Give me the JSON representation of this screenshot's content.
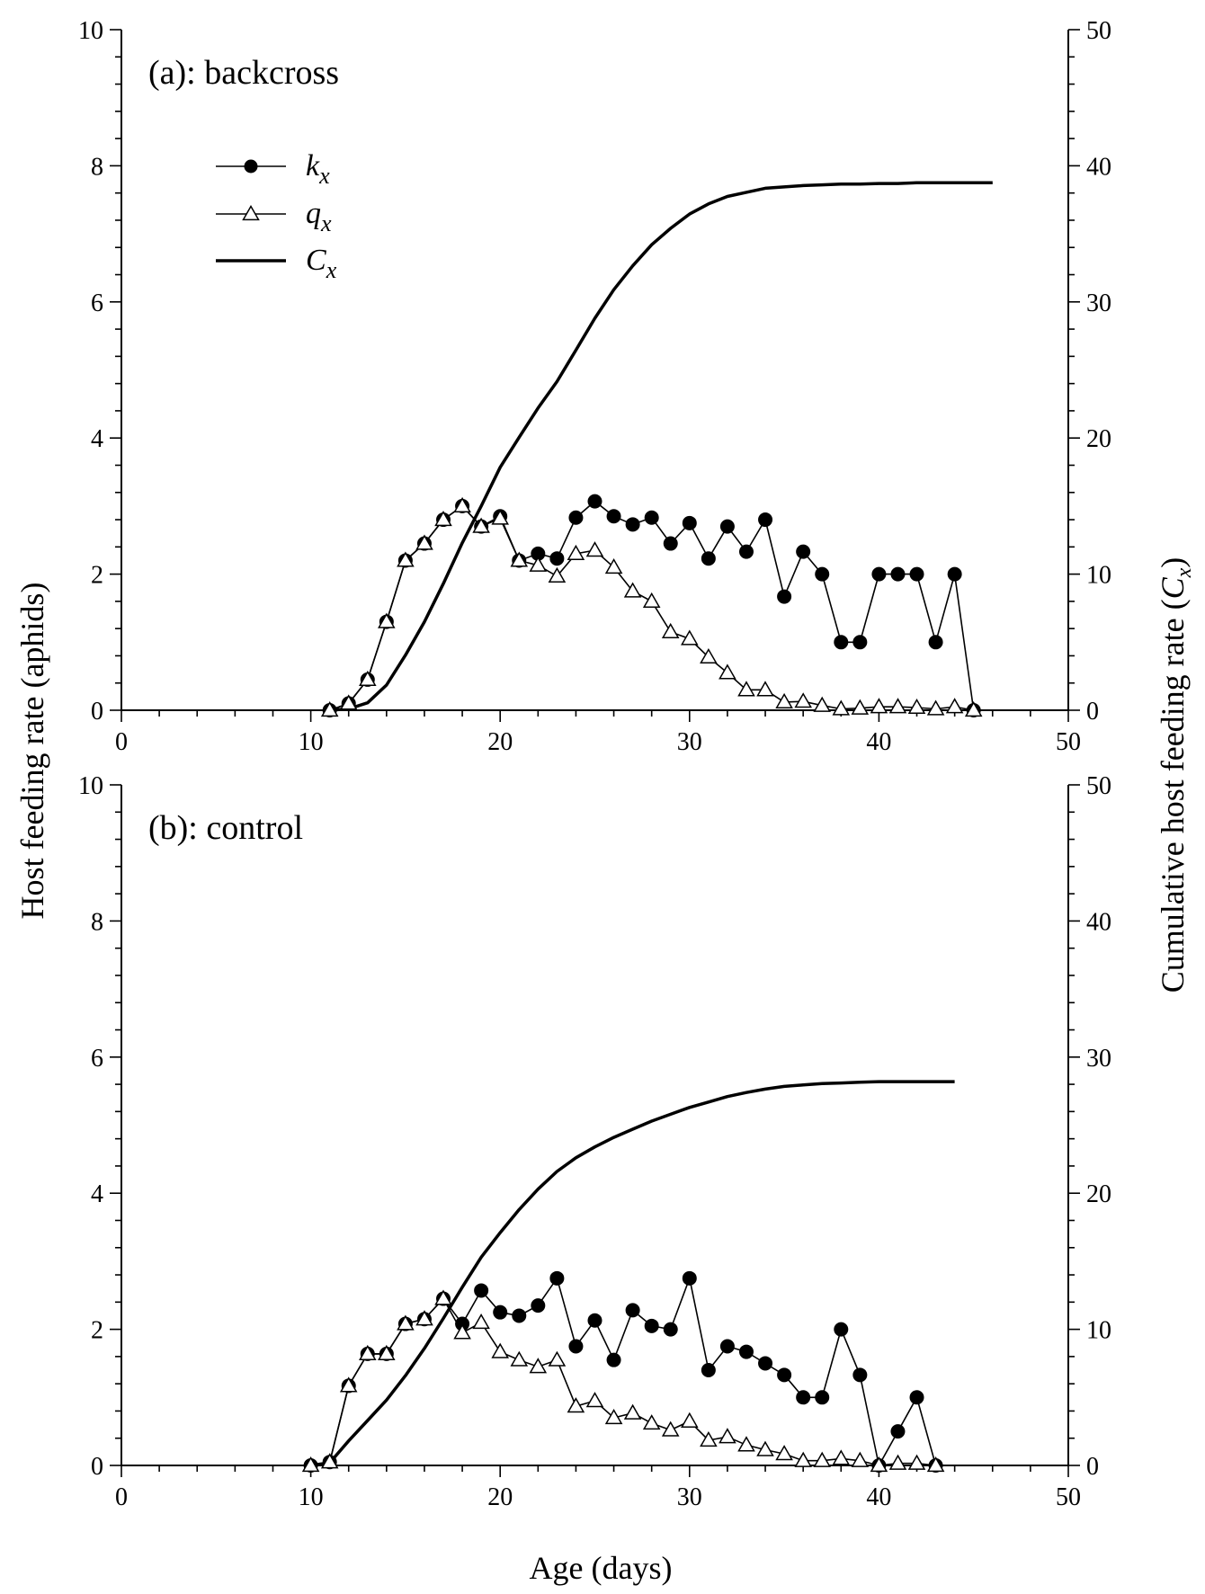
{
  "chart_data": {
    "type": "line",
    "shared": {
      "ylabel_left": "Host feeding rate (aphids)",
      "ylabel_right": "Cumulative host feeding rate (",
      "ylabel_right_symbol": "C",
      "ylabel_right_sub": "x",
      "ylabel_right_close": ")",
      "xlabel": "Age (days)",
      "xlim": [
        0,
        50
      ],
      "ylim_left": [
        0,
        10
      ],
      "ylim_right": [
        0,
        50
      ],
      "x_ticks": [
        0,
        10,
        20,
        30,
        40,
        50
      ],
      "y_left_ticks": [
        0,
        2,
        4,
        6,
        8,
        10
      ],
      "y_right_ticks": [
        0,
        10,
        20,
        30,
        40,
        50
      ],
      "x_tick_labels": [
        "0",
        "10",
        "20",
        "30",
        "40",
        "50"
      ],
      "y_left_tick_labels": [
        "0",
        "2",
        "4",
        "6",
        "8",
        "10"
      ],
      "y_right_tick_labels": [
        "0",
        "10",
        "20",
        "30",
        "40",
        "50"
      ],
      "legend": [
        {
          "name": "k",
          "sub": "x",
          "marker": "filled-circle"
        },
        {
          "name": "q",
          "sub": "x",
          "marker": "open-triangle"
        },
        {
          "name": "C",
          "sub": "x",
          "marker": "thick-line"
        }
      ]
    },
    "panels": [
      {
        "title": "(a): backcross",
        "series": [
          {
            "name": "kx",
            "axis": "left",
            "x": [
              11,
              12,
              13,
              14,
              15,
              16,
              17,
              18,
              19,
              20,
              21,
              22,
              23,
              24,
              25,
              26,
              27,
              28,
              29,
              30,
              31,
              32,
              33,
              34,
              35,
              36,
              37,
              38,
              39,
              40,
              41,
              42,
              43,
              44,
              45
            ],
            "y": [
              0,
              0.1,
              0.45,
              1.3,
              2.2,
              2.45,
              2.8,
              3.0,
              2.7,
              2.85,
              2.2,
              2.3,
              2.23,
              2.83,
              3.07,
              2.85,
              2.73,
              2.83,
              2.45,
              2.75,
              2.23,
              2.7,
              2.33,
              2.8,
              1.67,
              2.33,
              2.0,
              1.0,
              1.0,
              2.0,
              2.0,
              2.0,
              1.0,
              2.0,
              0
            ]
          },
          {
            "name": "qx",
            "axis": "left",
            "x": [
              11,
              12,
              13,
              14,
              15,
              16,
              17,
              18,
              19,
              20,
              21,
              22,
              23,
              24,
              25,
              26,
              27,
              28,
              29,
              30,
              31,
              32,
              33,
              34,
              35,
              36,
              37,
              38,
              39,
              40,
              41,
              42,
              43,
              44,
              45
            ],
            "y": [
              0,
              0.1,
              0.45,
              1.3,
              2.2,
              2.45,
              2.8,
              3.0,
              2.7,
              2.82,
              2.2,
              2.13,
              1.97,
              2.3,
              2.35,
              2.1,
              1.75,
              1.6,
              1.15,
              1.05,
              0.78,
              0.55,
              0.3,
              0.3,
              0.12,
              0.13,
              0.07,
              0.02,
              0.03,
              0.05,
              0.05,
              0.04,
              0.02,
              0.05,
              0
            ]
          },
          {
            "name": "Cx",
            "axis": "right",
            "x": [
              11,
              12,
              13,
              14,
              15,
              16,
              17,
              18,
              19,
              20,
              21,
              22,
              23,
              24,
              25,
              26,
              27,
              28,
              29,
              30,
              31,
              32,
              33,
              34,
              35,
              36,
              37,
              38,
              39,
              40,
              41,
              42,
              43,
              44,
              45,
              46
            ],
            "y": [
              0,
              0.1,
              0.55,
              1.85,
              4.05,
              6.5,
              9.3,
              12.3,
              15.0,
              17.85,
              20.05,
              22.2,
              24.15,
              26.45,
              28.8,
              30.9,
              32.65,
              34.2,
              35.4,
              36.45,
              37.2,
              37.75,
              38.05,
              38.35,
              38.45,
              38.55,
              38.6,
              38.65,
              38.65,
              38.7,
              38.7,
              38.75,
              38.75,
              38.75,
              38.75,
              38.75
            ]
          }
        ]
      },
      {
        "title": "(b): control",
        "series": [
          {
            "name": "kx",
            "axis": "left",
            "x": [
              10,
              11,
              12,
              13,
              14,
              15,
              16,
              17,
              18,
              19,
              20,
              21,
              22,
              23,
              24,
              25,
              26,
              27,
              28,
              29,
              30,
              31,
              32,
              33,
              34,
              35,
              36,
              37,
              38,
              39,
              40,
              41,
              42,
              43
            ],
            "y": [
              0,
              0.05,
              1.17,
              1.64,
              1.64,
              2.08,
              2.15,
              2.45,
              2.08,
              2.57,
              2.25,
              2.2,
              2.35,
              2.75,
              1.75,
              2.13,
              1.55,
              2.28,
              2.05,
              2.0,
              2.75,
              1.4,
              1.75,
              1.67,
              1.5,
              1.33,
              1.0,
              1.0,
              2.0,
              1.33,
              0,
              0.5,
              1.0,
              0
            ]
          },
          {
            "name": "qx",
            "axis": "left",
            "x": [
              10,
              11,
              12,
              13,
              14,
              15,
              16,
              17,
              18,
              19,
              20,
              21,
              22,
              23,
              24,
              25,
              26,
              27,
              28,
              29,
              30,
              31,
              32,
              33,
              34,
              35,
              36,
              37,
              38,
              39,
              40,
              41,
              42,
              43
            ],
            "y": [
              0,
              0.05,
              1.17,
              1.64,
              1.64,
              2.08,
              2.15,
              2.45,
              1.95,
              2.1,
              1.67,
              1.55,
              1.45,
              1.55,
              0.87,
              0.95,
              0.7,
              0.77,
              0.62,
              0.52,
              0.65,
              0.37,
              0.42,
              0.3,
              0.23,
              0.17,
              0.07,
              0.07,
              0.1,
              0.07,
              0,
              0.03,
              0.03,
              0
            ]
          },
          {
            "name": "Cx",
            "axis": "right",
            "x": [
              10,
              11,
              12,
              13,
              14,
              15,
              16,
              17,
              18,
              19,
              20,
              21,
              22,
              23,
              24,
              25,
              26,
              27,
              28,
              29,
              30,
              31,
              32,
              33,
              34,
              35,
              36,
              37,
              38,
              39,
              40,
              41,
              42,
              43,
              44
            ],
            "y": [
              0,
              0.2,
              1.8,
              3.3,
              4.8,
              6.6,
              8.6,
              10.8,
              13.1,
              15.3,
              17.1,
              18.8,
              20.3,
              21.6,
              22.6,
              23.4,
              24.1,
              24.7,
              25.3,
              25.8,
              26.3,
              26.7,
              27.1,
              27.4,
              27.65,
              27.85,
              27.95,
              28.05,
              28.1,
              28.15,
              28.2,
              28.2,
              28.2,
              28.2,
              28.2
            ]
          }
        ]
      }
    ]
  }
}
